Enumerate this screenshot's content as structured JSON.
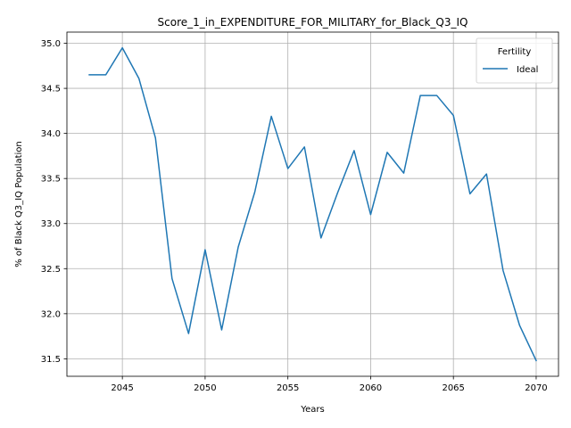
{
  "chart_data": {
    "type": "line",
    "title": "Score_1_in_EXPENDITURE_FOR_MILITARY_for_Black_Q3_IQ",
    "xlabel": "Years",
    "ylabel": "% of Black Q3_IQ Population",
    "xlim": [
      2041.65,
      2071.35
    ],
    "ylim": [
      31.306,
      35.124
    ],
    "xticks": [
      2045,
      2050,
      2055,
      2060,
      2065,
      2070
    ],
    "yticks": [
      31.5,
      32.0,
      32.5,
      33.0,
      33.5,
      34.0,
      34.5,
      35.0
    ],
    "xtick_labels": [
      "2045",
      "2050",
      "2055",
      "2060",
      "2065",
      "2070"
    ],
    "ytick_labels": [
      "31.5",
      "32.0",
      "32.5",
      "33.0",
      "33.5",
      "34.0",
      "34.5",
      "35.0"
    ],
    "grid": true,
    "legend": {
      "title": "Fertility",
      "placement": "top-right"
    },
    "series": [
      {
        "name": "Ideal",
        "color": "#1f77b4",
        "x": [
          2043,
          2044,
          2045,
          2046,
          2047,
          2048,
          2049,
          2050,
          2051,
          2052,
          2053,
          2054,
          2055,
          2056,
          2057,
          2058,
          2059,
          2060,
          2061,
          2062,
          2063,
          2064,
          2065,
          2066,
          2067,
          2068,
          2069,
          2070
        ],
        "y": [
          34.65,
          34.65,
          34.95,
          34.61,
          33.95,
          32.39,
          31.78,
          32.71,
          31.82,
          32.74,
          33.35,
          34.19,
          33.61,
          33.85,
          32.84,
          33.34,
          33.81,
          33.1,
          33.79,
          33.56,
          34.42,
          34.42,
          34.2,
          33.33,
          33.55,
          32.48,
          31.87,
          31.48
        ]
      }
    ]
  }
}
